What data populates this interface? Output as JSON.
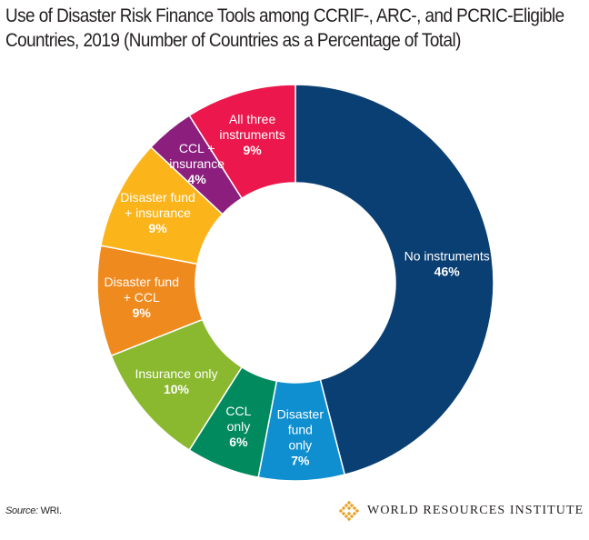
{
  "header": {
    "title_line1": "Use of Disaster Risk Finance Tools among CCRIF-, ARC-, and PCRIC-Eligible",
    "title_line2": "Countries, 2019 (Number of Countries as a Percentage of Total)"
  },
  "footer": {
    "source_label": "Source:",
    "source_text": " WRI.",
    "logo_text": "WORLD RESOURCES INSTITUTE",
    "logo_color": "#e8a32a"
  },
  "chart_data": {
    "type": "pie",
    "donut": true,
    "slices": [
      {
        "label": [
          "No instruments"
        ],
        "value": 46,
        "value_label": "46%",
        "color": "#0a3f73",
        "text_color": "#ffffff"
      },
      {
        "label": [
          "Disaster",
          "fund",
          "only"
        ],
        "value": 7,
        "value_label": "7%",
        "color": "#0f8fd0",
        "text_color": "#ffffff"
      },
      {
        "label": [
          "CCL",
          "only"
        ],
        "value": 6,
        "value_label": "6%",
        "color": "#008a5e",
        "text_color": "#ffffff"
      },
      {
        "label": [
          "Insurance only"
        ],
        "value": 10,
        "value_label": "10%",
        "color": "#8ab82e",
        "text_color": "#ffffff"
      },
      {
        "label": [
          "Disaster fund",
          "+ CCL"
        ],
        "value": 9,
        "value_label": "9%",
        "color": "#ef8a1e",
        "text_color": "#ffffff"
      },
      {
        "label": [
          "Disaster fund",
          "+ insurance"
        ],
        "value": 9,
        "value_label": "9%",
        "color": "#fbb51b",
        "text_color": "#ffffff"
      },
      {
        "label": [
          "CCL +",
          "insurance"
        ],
        "value": 4,
        "value_label": "4%",
        "color": "#8c1f7e",
        "text_color": "#ffffff"
      },
      {
        "label": [
          "All three",
          "instruments"
        ],
        "value": 9,
        "value_label": "9%",
        "color": "#ec174c",
        "text_color": "#ffffff"
      }
    ]
  }
}
